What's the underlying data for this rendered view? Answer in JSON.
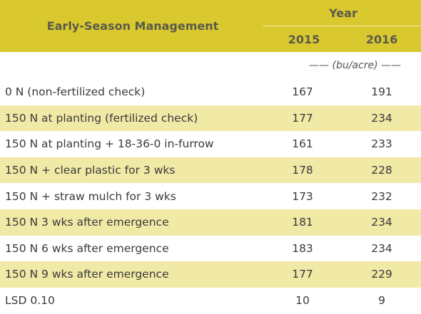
{
  "header": {
    "title": "Early-Season Management",
    "year_label": "Year",
    "col_2015": "2015",
    "col_2016": "2016"
  },
  "units": "—— (bu/acre) ——",
  "rows": [
    {
      "label": "0 N (non-fertilized check)",
      "y2015": "167",
      "y2016": "191"
    },
    {
      "label": "150 N at planting (fertilized check)",
      "y2015": "177",
      "y2016": "234"
    },
    {
      "label": "150 N at planting + 18-36-0 in-furrow",
      "y2015": "161",
      "y2016": "233"
    },
    {
      "label": "150 N + clear plastic for 3 wks",
      "y2015": "178",
      "y2016": "228"
    },
    {
      "label": "150 N + straw mulch for 3 wks",
      "y2015": "173",
      "y2016": "232"
    },
    {
      "label": "150 N 3 wks after emergence",
      "y2015": "181",
      "y2016": "234"
    },
    {
      "label": "150 N 6 wks after emergence",
      "y2015": "183",
      "y2016": "234"
    },
    {
      "label": "150 N 9 wks after emergence",
      "y2015": "177",
      "y2016": "229"
    },
    {
      "label": "LSD 0.10",
      "y2015": "10",
      "y2016": "9"
    }
  ],
  "colors": {
    "header_bg": "#d9c92f",
    "stripe_bg": "#f1e9a6",
    "header_text": "#5b5a4a"
  }
}
